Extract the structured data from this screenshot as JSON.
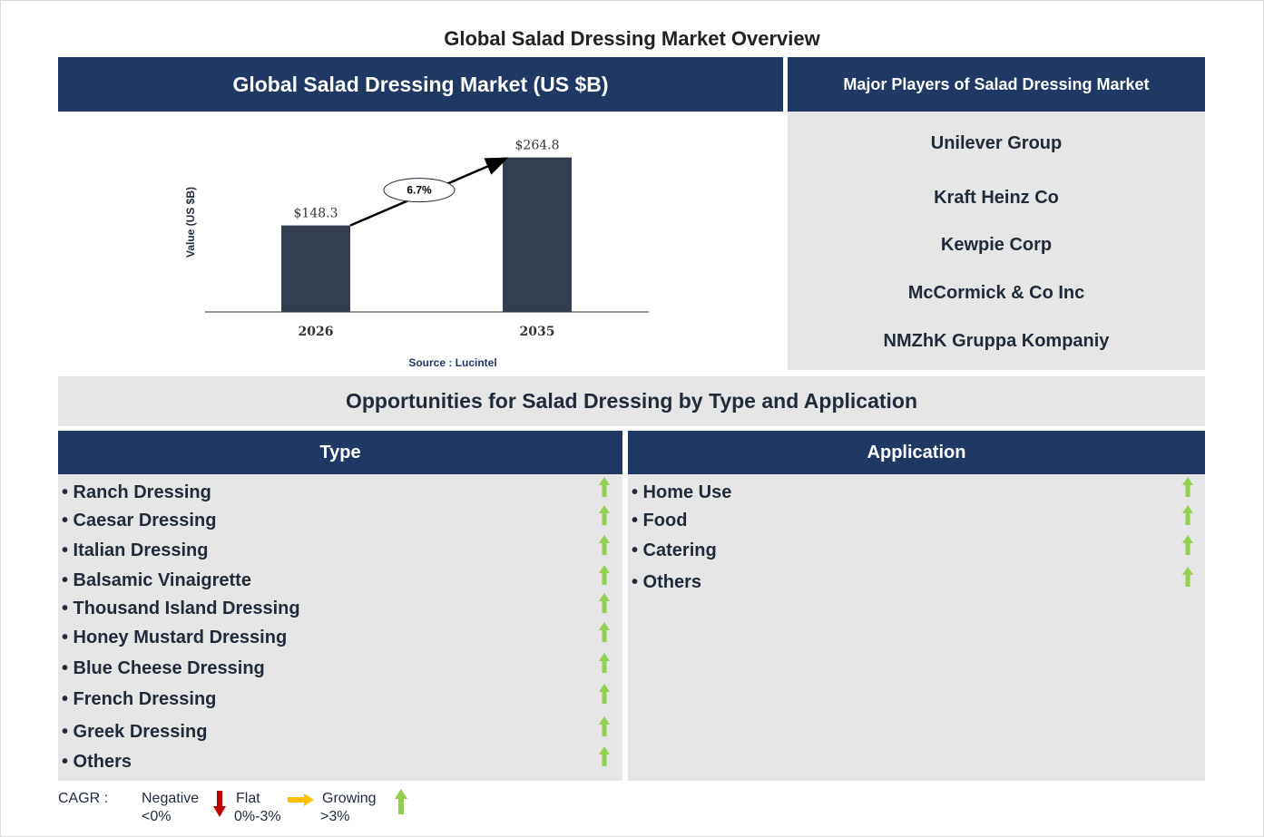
{
  "page_title": "Global Salad Dressing Market Overview",
  "market_header": "Global Salad Dressing Market (US $B)",
  "players_header": "Major Players of Salad Dressing Market",
  "players": [
    "Unilever Group",
    "Kraft Heinz Co",
    "Kewpie Corp",
    "McCormick & Co Inc",
    "NMZhK Gruppa Kompaniy"
  ],
  "opportunities_title": "Opportunities for Salad Dressing by Type and Application",
  "type_header": "Type",
  "application_header": "Application",
  "types": [
    "• Ranch Dressing",
    "• Caesar Dressing",
    "• Italian Dressing",
    "• Balsamic Vinaigrette",
    "• Thousand Island Dressing",
    "• Honey Mustard Dressing",
    "• Blue Cheese Dressing",
    "• French Dressing",
    "• Greek Dressing",
    "• Others"
  ],
  "applications": [
    "• Home Use",
    "• Food",
    "• Catering",
    "• Others"
  ],
  "trend_icon": "growing-arrow-icon",
  "legend": {
    "cagr_label": "CAGR  :",
    "negative_label": "Negative",
    "negative_range": "<0%",
    "flat_label": "Flat",
    "flat_range": "0%-3%",
    "growing_label": "Growing",
    "growing_range": ">3%"
  },
  "colors": {
    "navy": "#1f3864",
    "panel_gray": "#e6e6e6",
    "bar": "#333f50",
    "growing": "#92d050",
    "negative": "#c00000",
    "flat": "#ffc000"
  },
  "chart_data": {
    "type": "bar",
    "categories": [
      "2026",
      "2035"
    ],
    "values": [
      148.3,
      264.8
    ],
    "value_labels": [
      "$148.3",
      "$264.8"
    ],
    "ylabel": "Value (US $B)",
    "cagr_annotation": "6.7%",
    "source": "Source : Lucintel",
    "ylim": [
      0,
      300
    ],
    "grid": false
  }
}
